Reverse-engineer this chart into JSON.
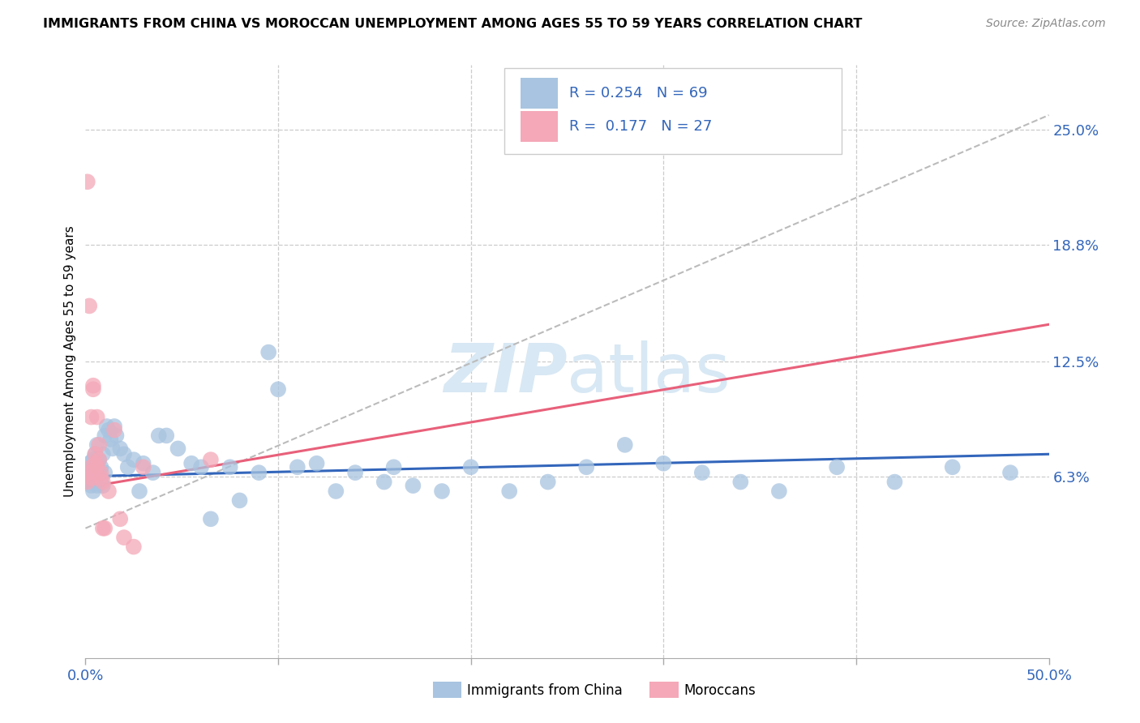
{
  "title": "IMMIGRANTS FROM CHINA VS MOROCCAN UNEMPLOYMENT AMONG AGES 55 TO 59 YEARS CORRELATION CHART",
  "source": "Source: ZipAtlas.com",
  "ylabel": "Unemployment Among Ages 55 to 59 years",
  "xlim": [
    0.0,
    0.5
  ],
  "ylim": [
    -0.035,
    0.285
  ],
  "yticks_right": [
    0.063,
    0.125,
    0.188,
    0.25
  ],
  "ytick_right_labels": [
    "6.3%",
    "12.5%",
    "18.8%",
    "25.0%"
  ],
  "legend_label_blue": "Immigrants from China",
  "legend_label_pink": "Moroccans",
  "blue_color": "#A8C4E0",
  "pink_color": "#F4A8B8",
  "blue_line_color": "#3366BB",
  "pink_line_color": "#E8607A",
  "dashed_line_color": "#BBBBBB",
  "text_color": "#3366BB",
  "watermark_color": "#D8E8F4",
  "blue_dots_x": [
    0.001,
    0.002,
    0.002,
    0.003,
    0.003,
    0.003,
    0.004,
    0.004,
    0.004,
    0.005,
    0.005,
    0.005,
    0.006,
    0.006,
    0.006,
    0.007,
    0.007,
    0.007,
    0.008,
    0.008,
    0.009,
    0.009,
    0.01,
    0.01,
    0.011,
    0.012,
    0.013,
    0.014,
    0.015,
    0.016,
    0.018,
    0.02,
    0.022,
    0.025,
    0.028,
    0.03,
    0.035,
    0.038,
    0.042,
    0.048,
    0.055,
    0.06,
    0.065,
    0.075,
    0.08,
    0.09,
    0.095,
    0.1,
    0.11,
    0.12,
    0.13,
    0.14,
    0.155,
    0.16,
    0.17,
    0.185,
    0.2,
    0.22,
    0.24,
    0.26,
    0.28,
    0.3,
    0.32,
    0.34,
    0.36,
    0.39,
    0.42,
    0.45,
    0.48
  ],
  "blue_dots_y": [
    0.065,
    0.07,
    0.06,
    0.068,
    0.058,
    0.065,
    0.072,
    0.063,
    0.055,
    0.075,
    0.068,
    0.062,
    0.08,
    0.058,
    0.07,
    0.065,
    0.072,
    0.062,
    0.068,
    0.06,
    0.075,
    0.058,
    0.085,
    0.065,
    0.09,
    0.088,
    0.083,
    0.078,
    0.09,
    0.085,
    0.078,
    0.075,
    0.068,
    0.072,
    0.055,
    0.07,
    0.065,
    0.085,
    0.085,
    0.078,
    0.07,
    0.068,
    0.04,
    0.068,
    0.05,
    0.065,
    0.13,
    0.11,
    0.068,
    0.07,
    0.055,
    0.065,
    0.06,
    0.068,
    0.058,
    0.055,
    0.068,
    0.055,
    0.06,
    0.068,
    0.08,
    0.07,
    0.065,
    0.06,
    0.055,
    0.068,
    0.06,
    0.068,
    0.065
  ],
  "pink_dots_x": [
    0.001,
    0.001,
    0.002,
    0.002,
    0.003,
    0.003,
    0.003,
    0.004,
    0.004,
    0.005,
    0.005,
    0.006,
    0.006,
    0.007,
    0.007,
    0.008,
    0.008,
    0.009,
    0.009,
    0.01,
    0.012,
    0.015,
    0.018,
    0.02,
    0.025,
    0.03,
    0.065
  ],
  "pink_dots_y": [
    0.222,
    0.06,
    0.065,
    0.155,
    0.068,
    0.062,
    0.095,
    0.11,
    0.112,
    0.07,
    0.075,
    0.068,
    0.095,
    0.08,
    0.072,
    0.065,
    0.062,
    0.035,
    0.06,
    0.035,
    0.055,
    0.088,
    0.04,
    0.03,
    0.025,
    0.068,
    0.072
  ],
  "blue_trend_x": [
    0.0,
    0.5
  ],
  "blue_trend_y": [
    0.063,
    0.075
  ],
  "pink_trend_x": [
    0.0,
    0.5
  ],
  "pink_trend_y": [
    0.057,
    0.145
  ],
  "dashed_trend_x": [
    0.0,
    0.5
  ],
  "dashed_trend_y": [
    0.035,
    0.258
  ]
}
